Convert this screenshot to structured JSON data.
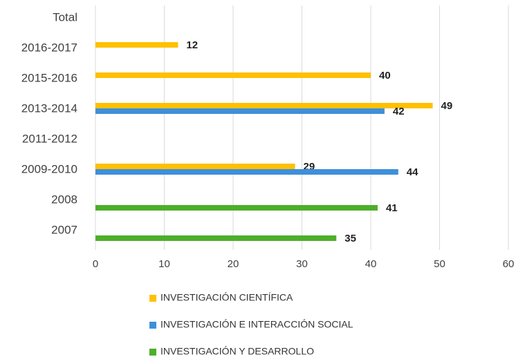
{
  "chart_data": {
    "type": "bar",
    "orientation": "horizontal",
    "categories": [
      "Total",
      "2016-2017",
      "2015-2016",
      "2013-2014",
      "2011-2012",
      "2009-2010",
      "2008",
      "2007"
    ],
    "series": [
      {
        "name": "INVESTIGACIÓN CIENTÍFICA",
        "color": "#FFC000",
        "values": [
          null,
          12,
          40,
          49,
          null,
          29,
          null,
          null
        ]
      },
      {
        "name": "INVESTIGACIÓN E INTERACCIÓN SOCIAL",
        "color": "#3E8FDB",
        "values": [
          null,
          null,
          null,
          42,
          null,
          44,
          null,
          null
        ]
      },
      {
        "name": "INVESTIGACIÓN Y DESARROLLO",
        "color": "#4DAF2A",
        "values": [
          null,
          null,
          null,
          null,
          null,
          null,
          41,
          35
        ]
      }
    ],
    "xlim": [
      0,
      60
    ],
    "xticks": [
      0,
      10,
      20,
      30,
      40,
      50,
      60
    ],
    "grid": true,
    "legend": "bottom"
  }
}
